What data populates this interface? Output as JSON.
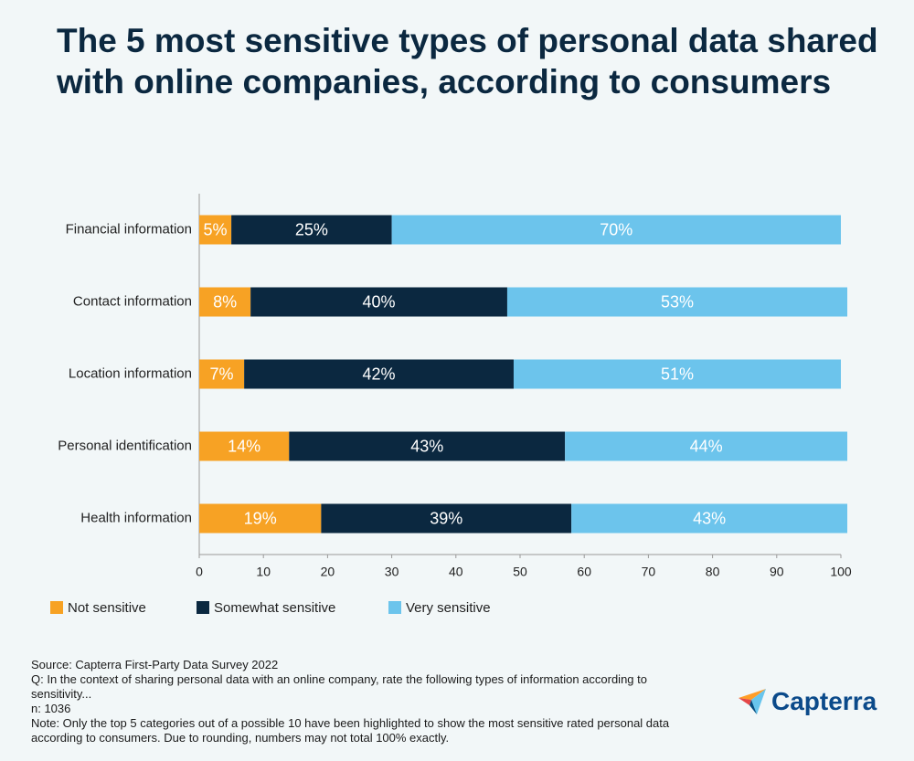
{
  "chart_data": {
    "type": "stacked-barh",
    "title": "The 5 most sensitive types of personal data shared with online companies, according to consumers",
    "categories": [
      "Financial information",
      "Contact information",
      "Location information",
      "Personal identification",
      "Health information"
    ],
    "series": [
      {
        "name": "Not sensitive",
        "color": "#f7a224",
        "values": [
          5,
          8,
          7,
          14,
          19
        ],
        "value_labels": [
          "5%",
          "8%",
          "7%",
          "14%",
          "19%"
        ]
      },
      {
        "name": "Somewhat sensitive",
        "color": "#0b2840",
        "values": [
          25,
          40,
          42,
          43,
          39
        ],
        "value_labels": [
          "25%",
          "40%",
          "42%",
          "43%",
          "39%"
        ]
      },
      {
        "name": "Very sensitive",
        "color": "#6cc4ec",
        "values": [
          70,
          53,
          51,
          44,
          43
        ],
        "value_labels": [
          "70%",
          "53%",
          "51%",
          "44%",
          "43%"
        ]
      }
    ],
    "xlim": [
      0,
      100
    ],
    "xticks": [
      0,
      10,
      20,
      30,
      40,
      50,
      60,
      70,
      80,
      90,
      100
    ],
    "legend": "bottom-left",
    "grid": false
  },
  "notes": [
    "Source: Capterra First-Party Data Survey 2022",
    "Q: In the context of sharing personal data with an online company, rate the following types of information according to sensitivity...",
    "n: 1036",
    "Note: Only the top 5 categories out of a possible 10 have been highlighted to show the most sensitive rated personal data according to consumers. Due to rounding, numbers may not total 100% exactly."
  ],
  "logo": "Capterra"
}
